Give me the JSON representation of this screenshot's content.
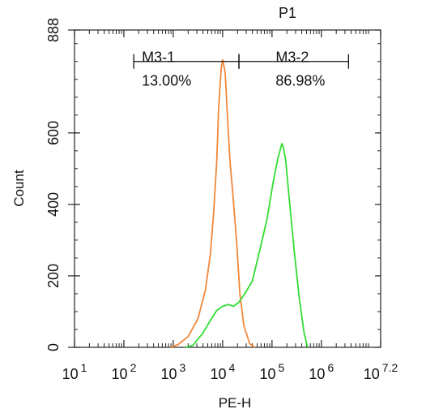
{
  "chart_data": {
    "type": "line",
    "title": "P1",
    "title_color": "#33dd33",
    "xlabel": "PE-H",
    "ylabel": "Count",
    "x_scale": "log10",
    "xlim": [
      1,
      7.2
    ],
    "x_ticks": [
      {
        "exp": 1,
        "base": "10",
        "sup": "1"
      },
      {
        "exp": 2,
        "base": "10",
        "sup": "2"
      },
      {
        "exp": 3,
        "base": "10",
        "sup": "3"
      },
      {
        "exp": 4,
        "base": "10",
        "sup": "4"
      },
      {
        "exp": 5,
        "base": "10",
        "sup": "5"
      },
      {
        "exp": 6,
        "base": "10",
        "sup": "6"
      },
      {
        "exp": 7.2,
        "base": "10",
        "sup": "7.2"
      }
    ],
    "ylim": [
      0,
      888
    ],
    "y_ticks": [
      {
        "value": 0,
        "label": "0"
      },
      {
        "value": 200,
        "label": "200"
      },
      {
        "value": 400,
        "label": "400"
      },
      {
        "value": 600,
        "label": "600"
      },
      {
        "value": 888,
        "label": "888"
      }
    ],
    "grid": false,
    "series": [
      {
        "color": "#f0883a",
        "points": [
          [
            2.95,
            0
          ],
          [
            3.1,
            8
          ],
          [
            3.3,
            30
          ],
          [
            3.5,
            80
          ],
          [
            3.65,
            160
          ],
          [
            3.75,
            260
          ],
          [
            3.82,
            380
          ],
          [
            3.88,
            520
          ],
          [
            3.92,
            670
          ],
          [
            3.97,
            780
          ],
          [
            4.0,
            805
          ],
          [
            4.05,
            770
          ],
          [
            4.1,
            640
          ],
          [
            4.15,
            520
          ],
          [
            4.2,
            440
          ],
          [
            4.28,
            300
          ],
          [
            4.35,
            150
          ],
          [
            4.43,
            60
          ],
          [
            4.55,
            10
          ],
          [
            4.65,
            0
          ]
        ]
      },
      {
        "color": "#33dd33",
        "points": [
          [
            3.25,
            0
          ],
          [
            3.4,
            6
          ],
          [
            3.6,
            40
          ],
          [
            3.75,
            75
          ],
          [
            3.88,
            103
          ],
          [
            4.0,
            115
          ],
          [
            4.12,
            120
          ],
          [
            4.22,
            115
          ],
          [
            4.32,
            125
          ],
          [
            4.45,
            150
          ],
          [
            4.6,
            185
          ],
          [
            4.75,
            270
          ],
          [
            4.9,
            360
          ],
          [
            5.02,
            460
          ],
          [
            5.12,
            530
          ],
          [
            5.2,
            570
          ],
          [
            5.23,
            560
          ],
          [
            5.28,
            520
          ],
          [
            5.36,
            400
          ],
          [
            5.45,
            270
          ],
          [
            5.55,
            140
          ],
          [
            5.65,
            40
          ],
          [
            5.72,
            0
          ]
        ]
      }
    ],
    "markers": [
      {
        "label": "M3-1",
        "percent": "13.00%",
        "x_start": 2.2,
        "x_end": 4.33,
        "y": 800
      },
      {
        "label": "M3-2",
        "percent": "86.98%",
        "x_start": 4.33,
        "x_end": 6.55,
        "y": 800
      }
    ]
  }
}
